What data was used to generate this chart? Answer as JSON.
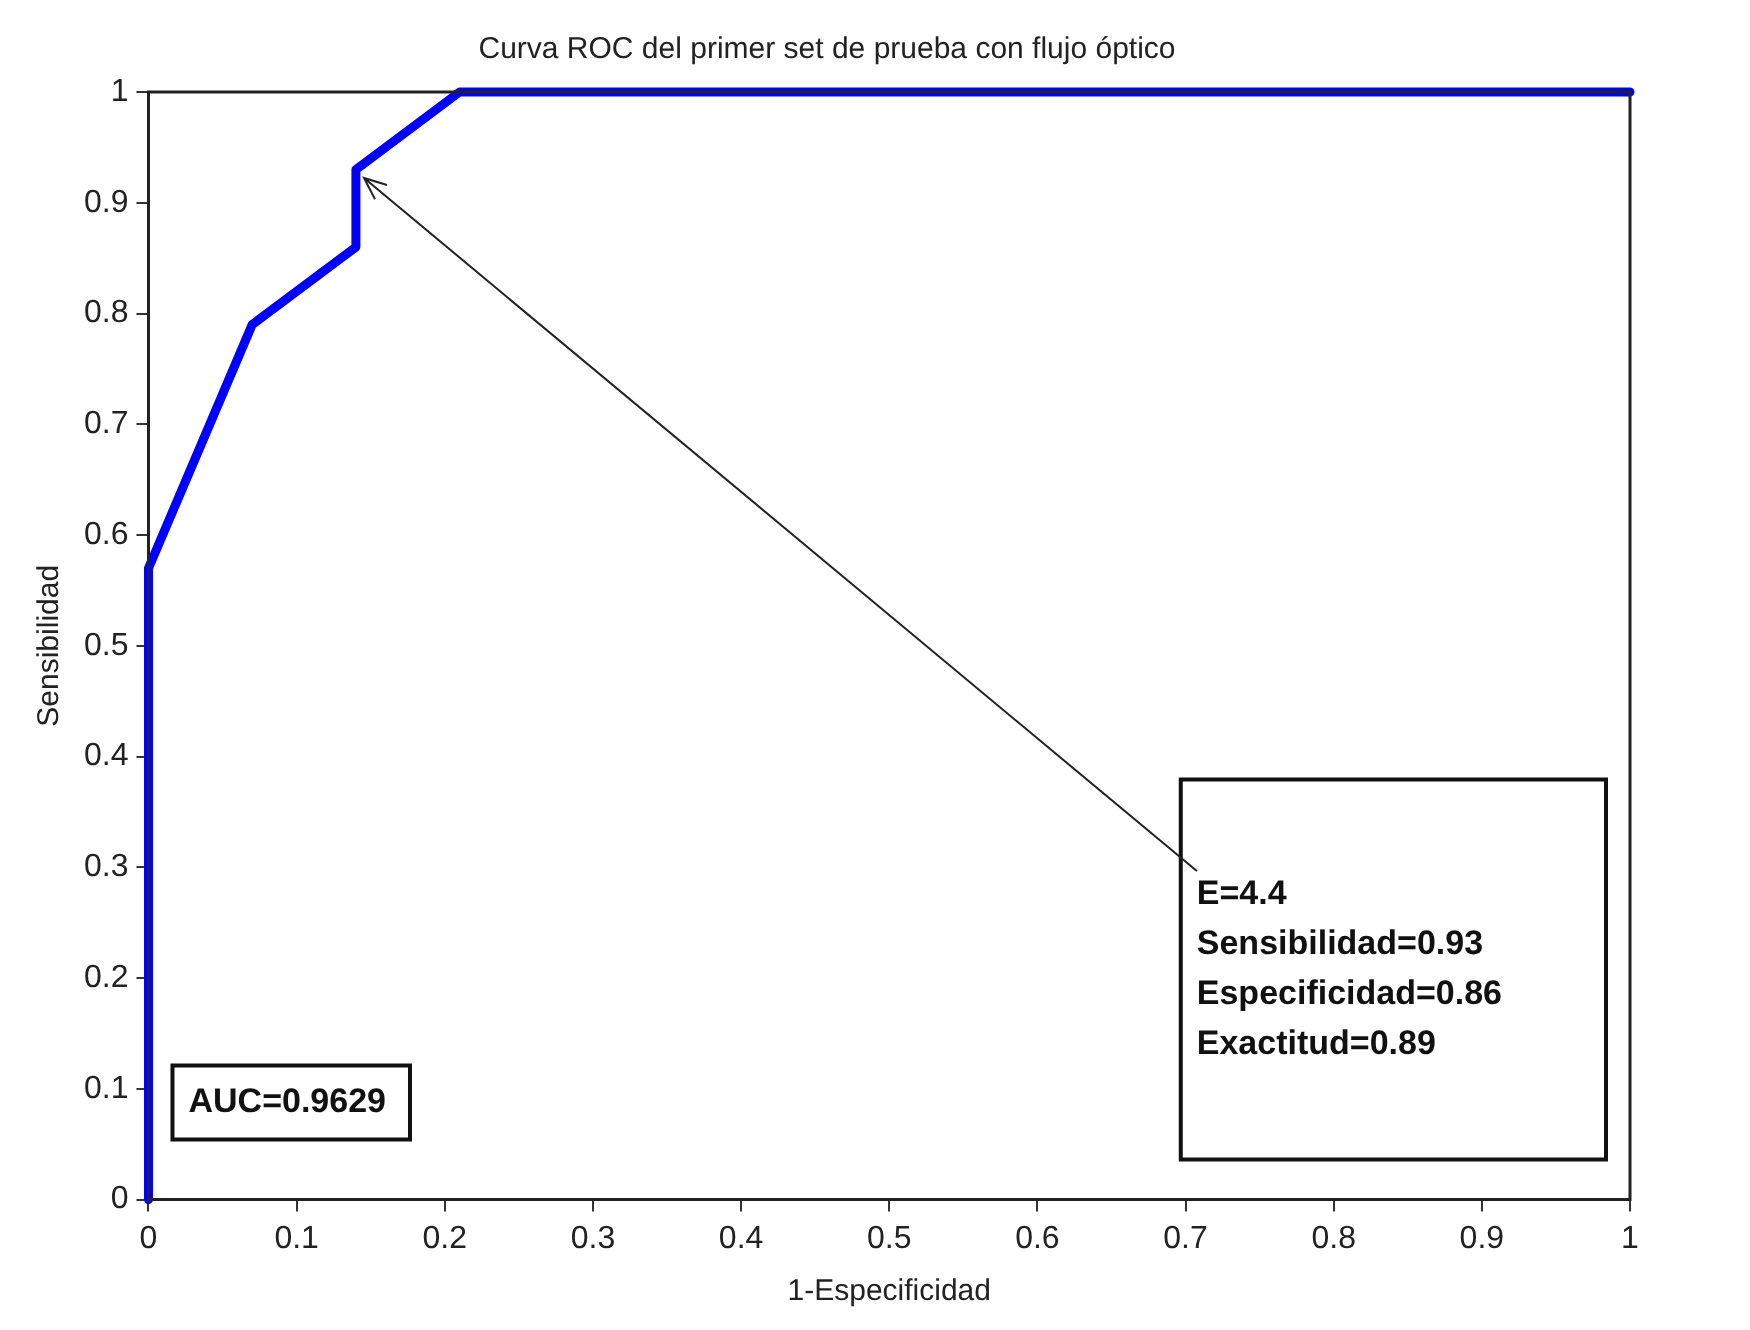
{
  "chart_data": {
    "type": "line",
    "title": "Curva ROC del primer set de prueba con flujo óptico",
    "xlabel": "1-Especificidad",
    "ylabel": "Sensibilidad",
    "x": [
      0,
      0,
      0.07,
      0.14,
      0.14,
      0.21,
      1
    ],
    "series": [
      {
        "color": "#0000ff",
        "values": [
          0,
          0.57,
          0.79,
          0.86,
          0.93,
          1,
          1
        ]
      }
    ],
    "xlim": [
      0,
      1
    ],
    "ylim": [
      0,
      1
    ],
    "xticks": [
      0,
      0.1,
      0.2,
      0.3,
      0.4,
      0.5,
      0.6,
      0.7,
      0.8,
      0.9,
      1
    ],
    "yticks": [
      0,
      0.1,
      0.2,
      0.3,
      0.4,
      0.5,
      0.6,
      0.7,
      0.8,
      0.9,
      1
    ],
    "grid": false,
    "legend": false,
    "marker": "none",
    "line_style": "solid",
    "annotations": [
      "AUC=0.9629",
      {
        "text": "E=4.4\nSensibilidad=0.93\nEspecificidad=0.86\nExactitud=0.89",
        "x": 0.14,
        "y": 0.93
      }
    ]
  }
}
